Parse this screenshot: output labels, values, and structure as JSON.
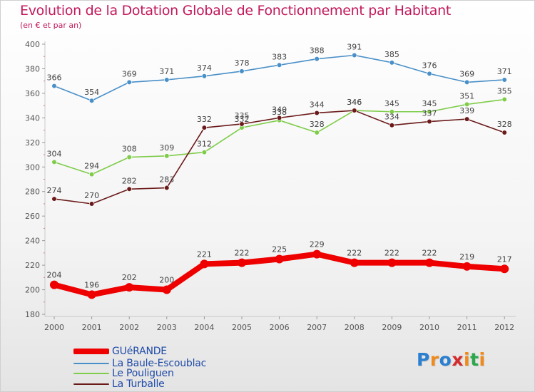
{
  "chart_data": {
    "type": "line",
    "title": "Evolution de la Dotation Globale de Fonctionnement par Habitant",
    "subtitle": "(en € et par an)",
    "xlabel": "",
    "ylabel": "",
    "x": [
      "2000",
      "2001",
      "2002",
      "2003",
      "2004",
      "2005",
      "2006",
      "2007",
      "2008",
      "2009",
      "2010",
      "2011",
      "2012"
    ],
    "ylim": [
      180,
      400
    ],
    "yticks": [
      "180",
      "200",
      "220",
      "240",
      "260",
      "280",
      "300",
      "320",
      "340",
      "360",
      "380",
      "400"
    ],
    "grid": false,
    "legend_position": "bottom-left",
    "series": [
      {
        "name": "GUéRANDE",
        "color": "#ee0000",
        "emphasis": true,
        "values": [
          204,
          196,
          202,
          200,
          221,
          222,
          225,
          229,
          222,
          222,
          222,
          219,
          217
        ]
      },
      {
        "name": "La Baule-Escoublac",
        "color": "#4a90c8",
        "values": [
          366,
          354,
          369,
          371,
          374,
          378,
          383,
          388,
          391,
          385,
          376,
          369,
          371
        ]
      },
      {
        "name": "Le Pouliguen",
        "color": "#7fcc4a",
        "values": [
          304,
          294,
          308,
          309,
          312,
          332,
          338,
          328,
          346,
          345,
          345,
          351,
          355
        ]
      },
      {
        "name": "La Turballe",
        "color": "#6b1a1a",
        "values": [
          274,
          270,
          282,
          283,
          332,
          335,
          340,
          344,
          346,
          334,
          337,
          339,
          328
        ]
      }
    ]
  },
  "logo": {
    "letters": [
      "P",
      "r",
      "o",
      "x",
      "i",
      "t",
      "i"
    ],
    "colors": [
      "#2a7fd0",
      "#f08a1c",
      "#2a7fd0",
      "#d42b2b",
      "#f08a1c",
      "#2aa84a",
      "#f08a1c"
    ]
  }
}
